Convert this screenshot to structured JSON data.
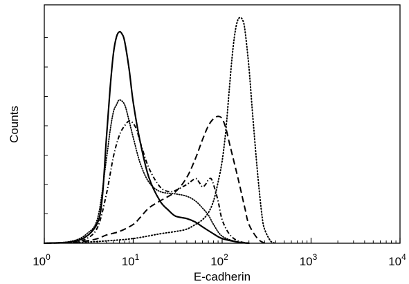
{
  "chart_data": {
    "type": "line",
    "xlabel": "E-cadherin",
    "ylabel": "Counts",
    "x_scale": "log",
    "xlim": [
      1,
      10000
    ],
    "ylim": [
      0,
      1
    ],
    "grid": false,
    "legend": "none",
    "x_ticks": [
      {
        "base": "10",
        "exp": "0",
        "value": 1
      },
      {
        "base": "10",
        "exp": "1",
        "value": 10
      },
      {
        "base": "10",
        "exp": "2",
        "value": 100
      },
      {
        "base": "10",
        "exp": "3",
        "value": 1000
      },
      {
        "base": "10",
        "exp": "4",
        "value": 10000
      }
    ],
    "y_ticks": [
      0.125,
      0.25,
      0.375,
      0.5,
      0.625,
      0.75,
      0.875
    ],
    "series": [
      {
        "style": "solid",
        "points": [
          [
            1,
            0
          ],
          [
            2,
            0.006
          ],
          [
            3,
            0.03
          ],
          [
            4,
            0.09
          ],
          [
            4.5,
            0.2
          ],
          [
            5,
            0.45
          ],
          [
            5.5,
            0.66
          ],
          [
            6,
            0.81
          ],
          [
            6.5,
            0.88
          ],
          [
            7,
            0.9
          ],
          [
            7.5,
            0.89
          ],
          [
            8,
            0.86
          ],
          [
            9,
            0.74
          ],
          [
            10,
            0.6
          ],
          [
            12,
            0.43
          ],
          [
            15,
            0.28
          ],
          [
            20,
            0.18
          ],
          [
            25,
            0.14
          ],
          [
            30,
            0.115
          ],
          [
            40,
            0.105
          ],
          [
            50,
            0.09
          ],
          [
            60,
            0.07
          ],
          [
            80,
            0.04
          ],
          [
            100,
            0.02
          ],
          [
            150,
            0.005
          ],
          [
            200,
            0
          ]
        ]
      },
      {
        "style": "dotted",
        "points": [
          [
            1,
            0
          ],
          [
            2,
            0.008
          ],
          [
            3,
            0.04
          ],
          [
            4,
            0.11
          ],
          [
            5,
            0.36
          ],
          [
            5.5,
            0.48
          ],
          [
            6,
            0.56
          ],
          [
            6.5,
            0.59
          ],
          [
            7,
            0.61
          ],
          [
            8,
            0.59
          ],
          [
            9,
            0.52
          ],
          [
            10,
            0.45
          ],
          [
            12,
            0.34
          ],
          [
            15,
            0.26
          ],
          [
            20,
            0.22
          ],
          [
            30,
            0.21
          ],
          [
            40,
            0.2
          ],
          [
            50,
            0.18
          ],
          [
            60,
            0.15
          ],
          [
            70,
            0.12
          ],
          [
            80,
            0.08
          ],
          [
            100,
            0.03
          ],
          [
            150,
            0.005
          ],
          [
            200,
            0
          ]
        ]
      },
      {
        "style": "dash-dot",
        "points": [
          [
            1,
            0
          ],
          [
            2,
            0.005
          ],
          [
            3,
            0.02
          ],
          [
            4,
            0.07
          ],
          [
            5,
            0.21
          ],
          [
            6,
            0.37
          ],
          [
            7,
            0.46
          ],
          [
            8,
            0.5
          ],
          [
            9,
            0.52
          ],
          [
            10,
            0.51
          ],
          [
            11,
            0.48
          ],
          [
            12,
            0.43
          ],
          [
            15,
            0.32
          ],
          [
            20,
            0.24
          ],
          [
            25,
            0.22
          ],
          [
            30,
            0.225
          ],
          [
            40,
            0.25
          ],
          [
            50,
            0.275
          ],
          [
            55,
            0.26
          ],
          [
            60,
            0.24
          ],
          [
            65,
            0.25
          ],
          [
            70,
            0.27
          ],
          [
            75,
            0.275
          ],
          [
            80,
            0.25
          ],
          [
            90,
            0.18
          ],
          [
            100,
            0.1
          ],
          [
            120,
            0.04
          ],
          [
            150,
            0.01
          ],
          [
            200,
            0
          ]
        ]
      },
      {
        "style": "dashed",
        "points": [
          [
            1,
            0
          ],
          [
            2,
            0.003
          ],
          [
            3,
            0.01
          ],
          [
            4,
            0.02
          ],
          [
            5,
            0.035
          ],
          [
            7,
            0.05
          ],
          [
            10,
            0.08
          ],
          [
            12,
            0.11
          ],
          [
            15,
            0.15
          ],
          [
            20,
            0.18
          ],
          [
            30,
            0.22
          ],
          [
            40,
            0.28
          ],
          [
            50,
            0.36
          ],
          [
            60,
            0.44
          ],
          [
            70,
            0.5
          ],
          [
            80,
            0.53
          ],
          [
            90,
            0.54
          ],
          [
            100,
            0.53
          ],
          [
            110,
            0.49
          ],
          [
            120,
            0.43
          ],
          [
            150,
            0.28
          ],
          [
            180,
            0.15
          ],
          [
            200,
            0.08
          ],
          [
            250,
            0.02
          ],
          [
            300,
            0
          ]
        ]
      },
      {
        "style": "fine-dotted",
        "points": [
          [
            1,
            0
          ],
          [
            3,
            0.005
          ],
          [
            5,
            0.01
          ],
          [
            10,
            0.02
          ],
          [
            20,
            0.04
          ],
          [
            30,
            0.05
          ],
          [
            40,
            0.06
          ],
          [
            50,
            0.08
          ],
          [
            60,
            0.1
          ],
          [
            70,
            0.13
          ],
          [
            80,
            0.18
          ],
          [
            90,
            0.26
          ],
          [
            100,
            0.35
          ],
          [
            110,
            0.48
          ],
          [
            120,
            0.65
          ],
          [
            130,
            0.8
          ],
          [
            140,
            0.9
          ],
          [
            150,
            0.95
          ],
          [
            160,
            0.96
          ],
          [
            170,
            0.95
          ],
          [
            180,
            0.91
          ],
          [
            200,
            0.75
          ],
          [
            220,
            0.55
          ],
          [
            250,
            0.3
          ],
          [
            280,
            0.12
          ],
          [
            300,
            0.06
          ],
          [
            350,
            0.01
          ],
          [
            400,
            0
          ]
        ]
      }
    ]
  }
}
